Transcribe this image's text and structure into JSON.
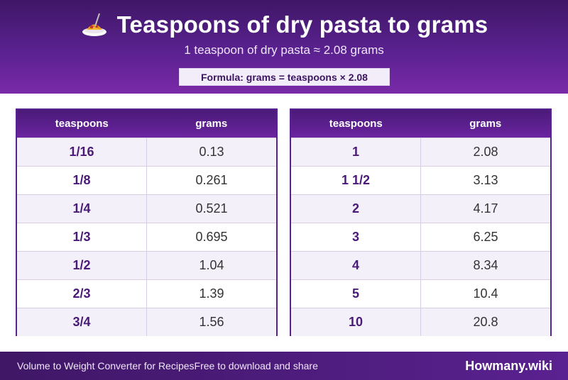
{
  "header": {
    "icon": "spaghetti-icon",
    "title": "Teaspoons of dry pasta to grams",
    "subtitle": "1 teaspoon of dry pasta ≈ 2.08 grams",
    "formula": "Formula: grams = teaspoons × 2.08"
  },
  "tables": {
    "left": {
      "col1": "teaspoons",
      "col2": "grams",
      "rows": [
        {
          "a": "1/16",
          "b": "0.13"
        },
        {
          "a": "1/8",
          "b": "0.261"
        },
        {
          "a": "1/4",
          "b": "0.521"
        },
        {
          "a": "1/3",
          "b": "0.695"
        },
        {
          "a": "1/2",
          "b": "1.04"
        },
        {
          "a": "2/3",
          "b": "1.39"
        },
        {
          "a": "3/4",
          "b": "1.56"
        }
      ]
    },
    "right": {
      "col1": "teaspoons",
      "col2": "grams",
      "rows": [
        {
          "a": "1",
          "b": "2.08"
        },
        {
          "a": "1 1/2",
          "b": "3.13"
        },
        {
          "a": "2",
          "b": "4.17"
        },
        {
          "a": "3",
          "b": "6.25"
        },
        {
          "a": "4",
          "b": "8.34"
        },
        {
          "a": "5",
          "b": "10.4"
        },
        {
          "a": "10",
          "b": "20.8"
        }
      ]
    }
  },
  "footer": {
    "left_text": "Volume to Weight Converter for RecipesFree to download and share",
    "brand": "Howmany.wiki"
  },
  "colors": {
    "primary": "#5a2190",
    "dark": "#3f1766",
    "row_alt": "#f4f0fa"
  }
}
